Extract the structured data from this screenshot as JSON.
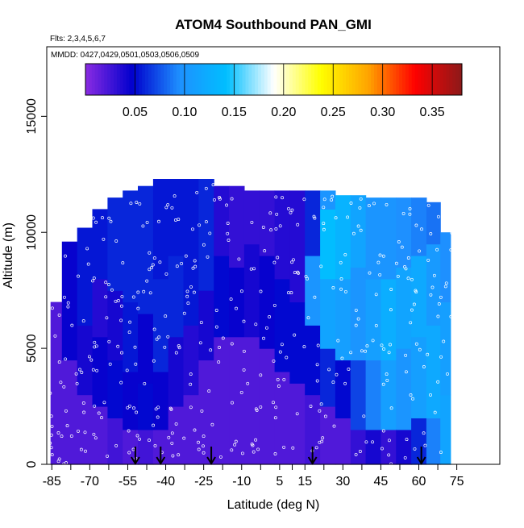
{
  "chart_data": {
    "type": "heatmap",
    "title": "ATOM4 Southbound PAN_GMI",
    "subtitle_flights": "Flts: 2,3,4,5,6,7",
    "subtitle_dates": "MMDD: 0427,0429,0501,0503,0506,0509",
    "xlabel": "Latitude (deg N)",
    "ylabel": "Altitude (m)",
    "xlim": [
      -87,
      92
    ],
    "ylim": [
      0,
      18000
    ],
    "x_ticks": [
      -85,
      -70,
      -55,
      -40,
      -25,
      -10,
      5,
      15,
      30,
      45,
      60,
      75
    ],
    "x_tick_labels": [
      "-85",
      "-70",
      "-55",
      "-40",
      "-25",
      "-10",
      "5",
      "15",
      "30",
      "45",
      "60",
      "75"
    ],
    "y_ticks": [
      0,
      5000,
      10000,
      15000
    ],
    "y_tick_labels": [
      "0",
      "5000",
      "10000",
      "15000"
    ],
    "colorbar": {
      "range": [
        0,
        0.38
      ],
      "ticks": [
        0.05,
        0.1,
        0.15,
        0.2,
        0.25,
        0.3,
        0.35
      ],
      "tick_labels": [
        "0.05",
        "0.10",
        "0.15",
        "0.20",
        "0.25",
        "0.30",
        "0.35"
      ],
      "colors": [
        "#8a2be2",
        "#0000cd",
        "#1e90ff",
        "#00bfff",
        "#ffffff",
        "#ffff00",
        "#ffa500",
        "#ff0000",
        "#8b1a1a"
      ]
    },
    "profile_latitudes": [
      -52,
      -42,
      -22,
      18,
      61
    ],
    "columns": [
      {
        "lat": -84,
        "top": 7000,
        "layers": [
          [
            0,
            7000,
            0.02
          ]
        ]
      },
      {
        "lat": -78,
        "top": 9600,
        "layers": [
          [
            0,
            4500,
            0.02
          ],
          [
            4500,
            9600,
            0.045
          ]
        ]
      },
      {
        "lat": -72,
        "top": 10200,
        "layers": [
          [
            0,
            3000,
            0.02
          ],
          [
            3000,
            6000,
            0.04
          ],
          [
            6000,
            10200,
            0.055
          ]
        ]
      },
      {
        "lat": -66,
        "top": 11000,
        "layers": [
          [
            0,
            2500,
            0.02
          ],
          [
            2500,
            5500,
            0.045
          ],
          [
            5500,
            8000,
            0.035
          ],
          [
            8000,
            11000,
            0.055
          ]
        ]
      },
      {
        "lat": -60,
        "top": 11500,
        "layers": [
          [
            0,
            2000,
            0.025
          ],
          [
            2000,
            4500,
            0.05
          ],
          [
            4500,
            7500,
            0.04
          ],
          [
            7500,
            11500,
            0.06
          ]
        ]
      },
      {
        "lat": -54,
        "top": 11800,
        "layers": [
          [
            0,
            1500,
            0.02
          ],
          [
            1500,
            4000,
            0.045
          ],
          [
            4000,
            7000,
            0.055
          ],
          [
            7000,
            11800,
            0.06
          ]
        ]
      },
      {
        "lat": -48,
        "top": 12000,
        "layers": [
          [
            0,
            1500,
            0.025
          ],
          [
            1500,
            3500,
            0.05
          ],
          [
            3500,
            6500,
            0.045
          ],
          [
            6500,
            12000,
            0.06
          ]
        ]
      },
      {
        "lat": -42,
        "top": 12300,
        "layers": [
          [
            0,
            1500,
            0.02
          ],
          [
            1500,
            4000,
            0.045
          ],
          [
            4000,
            8000,
            0.06
          ],
          [
            8000,
            12300,
            0.055
          ]
        ]
      },
      {
        "lat": -36,
        "top": 12300,
        "layers": [
          [
            0,
            2500,
            0.02
          ],
          [
            2500,
            5500,
            0.04
          ],
          [
            5500,
            9000,
            0.06
          ],
          [
            9000,
            12300,
            0.055
          ]
        ]
      },
      {
        "lat": -30,
        "top": 12300,
        "layers": [
          [
            0,
            3000,
            0.02
          ],
          [
            3000,
            6000,
            0.035
          ],
          [
            6000,
            12300,
            0.055
          ]
        ]
      },
      {
        "lat": -24,
        "top": 12300,
        "layers": [
          [
            0,
            4500,
            0.02
          ],
          [
            4500,
            7500,
            0.04
          ],
          [
            7500,
            12300,
            0.06
          ]
        ]
      },
      {
        "lat": -18,
        "top": 12000,
        "layers": [
          [
            0,
            5500,
            0.02
          ],
          [
            5500,
            9000,
            0.05
          ],
          [
            9000,
            12000,
            0.035
          ]
        ]
      },
      {
        "lat": -12,
        "top": 12000,
        "layers": [
          [
            0,
            5500,
            0.02
          ],
          [
            5500,
            8500,
            0.045
          ],
          [
            8500,
            12000,
            0.03
          ]
        ]
      },
      {
        "lat": -6,
        "top": 11800,
        "layers": [
          [
            0,
            5500,
            0.02
          ],
          [
            5500,
            9500,
            0.04
          ],
          [
            9500,
            11800,
            0.03
          ]
        ]
      },
      {
        "lat": 0,
        "top": 11800,
        "layers": [
          [
            0,
            5000,
            0.02
          ],
          [
            5000,
            9000,
            0.045
          ],
          [
            9000,
            11800,
            0.03
          ]
        ]
      },
      {
        "lat": 6,
        "top": 11800,
        "layers": [
          [
            0,
            4000,
            0.02
          ],
          [
            4000,
            8000,
            0.05
          ],
          [
            8000,
            11800,
            0.035
          ]
        ]
      },
      {
        "lat": 12,
        "top": 11800,
        "layers": [
          [
            0,
            3500,
            0.02
          ],
          [
            3500,
            7000,
            0.05
          ],
          [
            7000,
            11800,
            0.035
          ]
        ]
      },
      {
        "lat": 18,
        "top": 11800,
        "layers": [
          [
            0,
            3000,
            0.025
          ],
          [
            3000,
            6000,
            0.05
          ],
          [
            6000,
            9000,
            0.1
          ],
          [
            9000,
            11800,
            0.06
          ]
        ]
      },
      {
        "lat": 24,
        "top": 11800,
        "layers": [
          [
            0,
            2500,
            0.02
          ],
          [
            2500,
            5000,
            0.06
          ],
          [
            5000,
            8000,
            0.115
          ],
          [
            8000,
            11000,
            0.14
          ],
          [
            11000,
            11800,
            0.1
          ]
        ]
      },
      {
        "lat": 30,
        "top": 11600,
        "layers": [
          [
            0,
            2000,
            0.02
          ],
          [
            2000,
            4500,
            0.05
          ],
          [
            4500,
            8000,
            0.11
          ],
          [
            8000,
            11600,
            0.13
          ]
        ]
      },
      {
        "lat": 36,
        "top": 11600,
        "layers": [
          [
            0,
            1500,
            0.03
          ],
          [
            1500,
            4500,
            0.07
          ],
          [
            4500,
            8500,
            0.1
          ],
          [
            8500,
            11600,
            0.115
          ]
        ]
      },
      {
        "lat": 42,
        "top": 11500,
        "layers": [
          [
            0,
            1500,
            0.04
          ],
          [
            1500,
            4500,
            0.09
          ],
          [
            4500,
            8000,
            0.11
          ],
          [
            8000,
            11500,
            0.1
          ]
        ]
      },
      {
        "lat": 48,
        "top": 11500,
        "layers": [
          [
            0,
            1500,
            0.03
          ],
          [
            1500,
            4500,
            0.11
          ],
          [
            4500,
            8000,
            0.125
          ],
          [
            8000,
            11500,
            0.1
          ]
        ]
      },
      {
        "lat": 54,
        "top": 11500,
        "layers": [
          [
            0,
            1500,
            0.04
          ],
          [
            1500,
            5000,
            0.1
          ],
          [
            5000,
            8500,
            0.115
          ],
          [
            8500,
            11500,
            0.095
          ]
        ]
      },
      {
        "lat": 60,
        "top": 11500,
        "layers": [
          [
            0,
            2000,
            0.06
          ],
          [
            2000,
            5500,
            0.11
          ],
          [
            5500,
            9000,
            0.12
          ],
          [
            9000,
            11500,
            0.09
          ]
        ]
      },
      {
        "lat": 66,
        "top": 11300,
        "layers": [
          [
            0,
            2000,
            0.09
          ],
          [
            2000,
            6000,
            0.12
          ],
          [
            6000,
            9500,
            0.105
          ],
          [
            9500,
            11300,
            0.085
          ]
        ]
      },
      {
        "lat": 71,
        "top": 10000,
        "layers": [
          [
            0,
            3000,
            0.115
          ],
          [
            3000,
            7000,
            0.11
          ],
          [
            7000,
            10000,
            0.095
          ]
        ]
      }
    ]
  }
}
